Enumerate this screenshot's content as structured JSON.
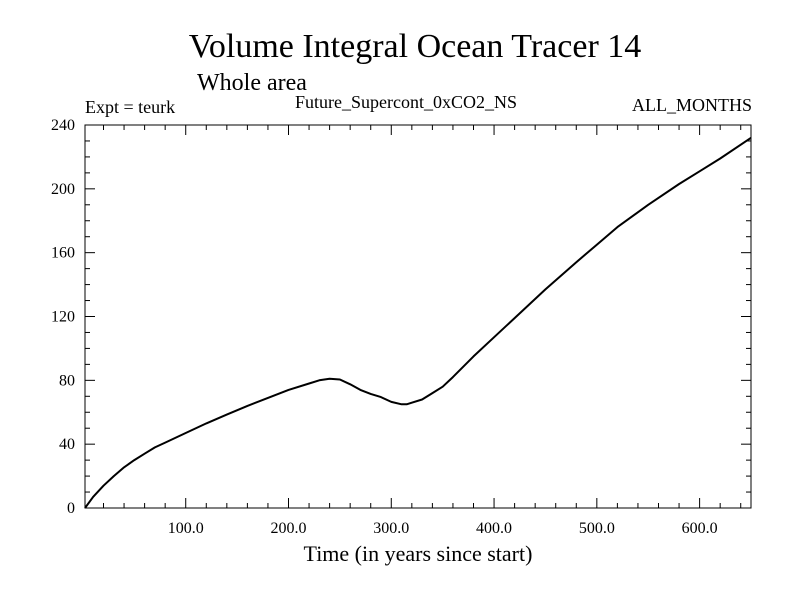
{
  "chart_data": {
    "type": "line",
    "title": "Volume Integral Ocean Tracer 14",
    "subtitle": "Whole area",
    "annotations": {
      "left": "Expt = teurk",
      "center": "Future_Supercont_0xCO2_NS",
      "right": "ALL_MONTHS"
    },
    "xlabel": "Time (in years since start)",
    "ylabel": "",
    "xlim": [
      2,
      650
    ],
    "ylim": [
      0,
      240
    ],
    "x_ticks": [
      100,
      200,
      300,
      400,
      500,
      600
    ],
    "x_tick_labels": [
      "100.0",
      "200.0",
      "300.0",
      "400.0",
      "500.0",
      "600.0"
    ],
    "y_ticks": [
      0,
      40,
      80,
      120,
      160,
      200,
      240
    ],
    "y_tick_labels": [
      "0",
      "40",
      "80",
      "120",
      "160",
      "200",
      "240"
    ],
    "grid": false,
    "series": [
      {
        "color": "#000000",
        "x": [
          2,
          10,
          20,
          30,
          40,
          50,
          60,
          70,
          80,
          100,
          120,
          140,
          160,
          180,
          200,
          220,
          230,
          240,
          250,
          260,
          270,
          280,
          290,
          300,
          310,
          315,
          320,
          330,
          340,
          350,
          360,
          380,
          400,
          420,
          450,
          480,
          500,
          520,
          550,
          580,
          600,
          620,
          650
        ],
        "y": [
          0,
          7,
          14,
          20,
          25.5,
          30,
          34,
          38,
          41,
          47,
          53,
          58.5,
          64,
          69,
          74,
          78,
          80,
          81,
          80.5,
          77.5,
          74,
          71.5,
          69.5,
          66.5,
          65,
          65,
          66,
          68,
          72,
          76,
          82,
          95,
          107,
          119,
          137,
          154,
          165,
          176,
          190,
          203,
          211,
          219,
          232
        ]
      }
    ]
  }
}
